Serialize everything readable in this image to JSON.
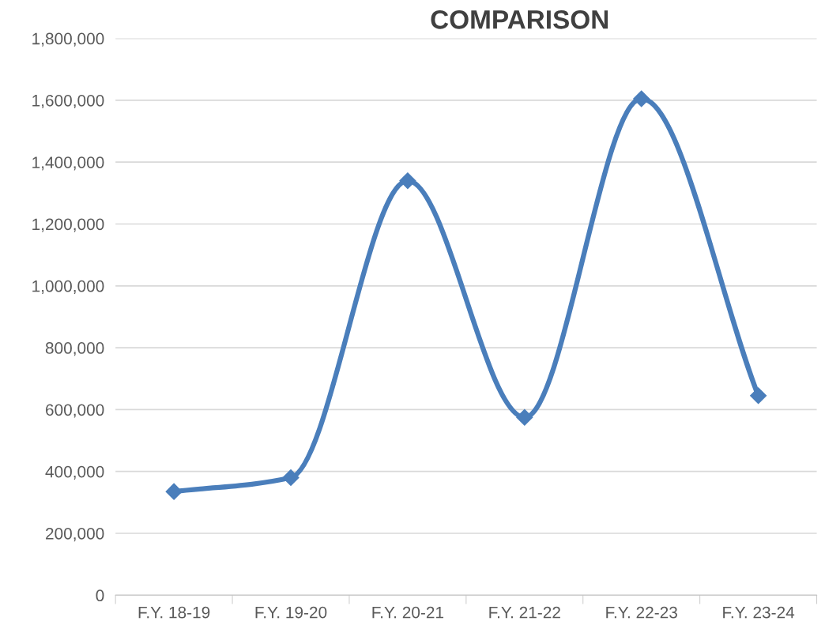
{
  "chart_data": {
    "type": "line",
    "title": "COMPARISON",
    "categories": [
      "F.Y. 18-19",
      "F.Y. 19-20",
      "F.Y. 20-21",
      "F.Y. 21-22",
      "F.Y. 22-23",
      "F.Y. 23-24"
    ],
    "series": [
      {
        "color": "#4a7ebb",
        "values": [
          335000,
          380000,
          1340000,
          575000,
          1605000,
          645000
        ]
      }
    ],
    "ylim": [
      0,
      1800000
    ],
    "yticks": [
      0,
      {
        "value": 200000,
        "label": "200,000"
      },
      {
        "value": 400000,
        "label": "400,000"
      },
      {
        "value": 600000,
        "label": "600,000"
      },
      {
        "value": 800000,
        "label": "800,000"
      },
      {
        "value": 1000000,
        "label": "1,000,000"
      },
      {
        "value": 1200000,
        "label": "1,200,000"
      },
      {
        "value": 1400000,
        "label": "1,400,000"
      },
      {
        "value": 1600000,
        "label": "1,600,000"
      },
      {
        "value": 1800000,
        "label": "1,800,000"
      }
    ],
    "grid": "y",
    "marker": "diamond",
    "line_style": "solid"
  }
}
